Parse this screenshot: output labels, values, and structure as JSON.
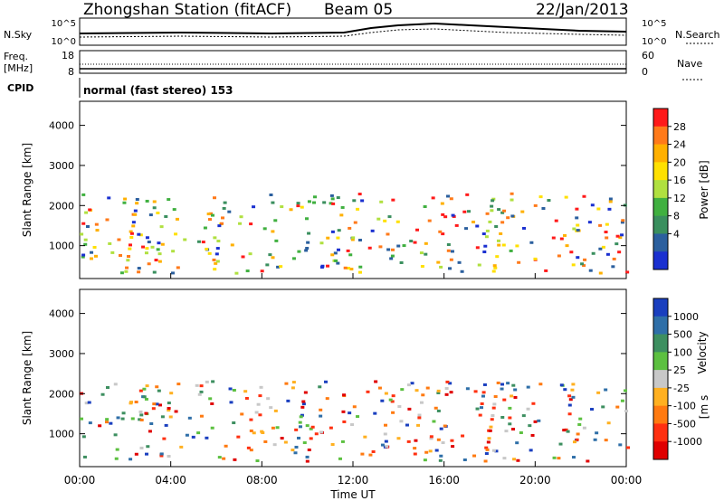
{
  "header": {
    "station": "Zhongshan Station (fitACF)",
    "beam": "Beam 05",
    "date": "22/Jan/2013"
  },
  "top_panels": {
    "nsky_label": "N.Sky",
    "nsky_ticks": [
      "10^5",
      "10^0"
    ],
    "nsearch_label": "N.Search",
    "nsearch_ticks": [
      "10^5",
      "10^0"
    ],
    "freq_label": "Freq.",
    "freq_unit": "[MHz]",
    "freq_ticks": [
      "18",
      "8"
    ],
    "nave_label": "Nave",
    "nave_ticks": [
      "60",
      "0"
    ],
    "cpid_label": "CPID",
    "cpid_text": "normal (fast stereo) 153"
  },
  "chart_data": [
    {
      "type": "heatmap",
      "name": "power",
      "ylabel": "Slant Range [km]",
      "yticks": [
        "4000",
        "3000",
        "2000",
        "1000"
      ],
      "ytick_values": [
        4000,
        3000,
        2000,
        1000
      ],
      "ylim": [
        180,
        4600
      ],
      "xlim": [
        0,
        24
      ],
      "colorbar_label": "Power [dB]",
      "colorbar_ticks": [
        "28",
        "24",
        "20",
        "16",
        "12",
        "8",
        "4"
      ],
      "colorbar_colors": [
        "#ff1a1a",
        "#ff7a1a",
        "#ffb000",
        "#ffe000",
        "#b0e040",
        "#40b040",
        "#3a8f5e",
        "#2b5f9e",
        "#1a30d0"
      ],
      "colorbar_range": [
        0,
        32
      ]
    },
    {
      "type": "heatmap",
      "name": "velocity",
      "ylabel": "Slant Range [km]",
      "yticks": [
        "4000",
        "3000",
        "2000",
        "1000"
      ],
      "ytick_values": [
        4000,
        3000,
        2000,
        1000
      ],
      "ylim": [
        180,
        4600
      ],
      "xlim": [
        0,
        24
      ],
      "xlabel": "Time UT",
      "xticks": [
        "00:00",
        "04:00",
        "08:00",
        "12:00",
        "16:00",
        "20:00",
        "00:00"
      ],
      "xtick_values": [
        0,
        4,
        8,
        12,
        16,
        20,
        24
      ],
      "colorbar_label_main": "Velocity",
      "colorbar_label_unit": "[m s",
      "colorbar_ticks": [
        "1000",
        "500",
        "100",
        "25",
        "-25",
        "-100",
        "-500",
        "-1000"
      ],
      "colorbar_colors": [
        "#1a3fbf",
        "#2f6fa8",
        "#3d8f60",
        "#5cc040",
        "#c8c8c8",
        "#ffb020",
        "#ff7a10",
        "#ff3010",
        "#e00000"
      ]
    }
  ]
}
